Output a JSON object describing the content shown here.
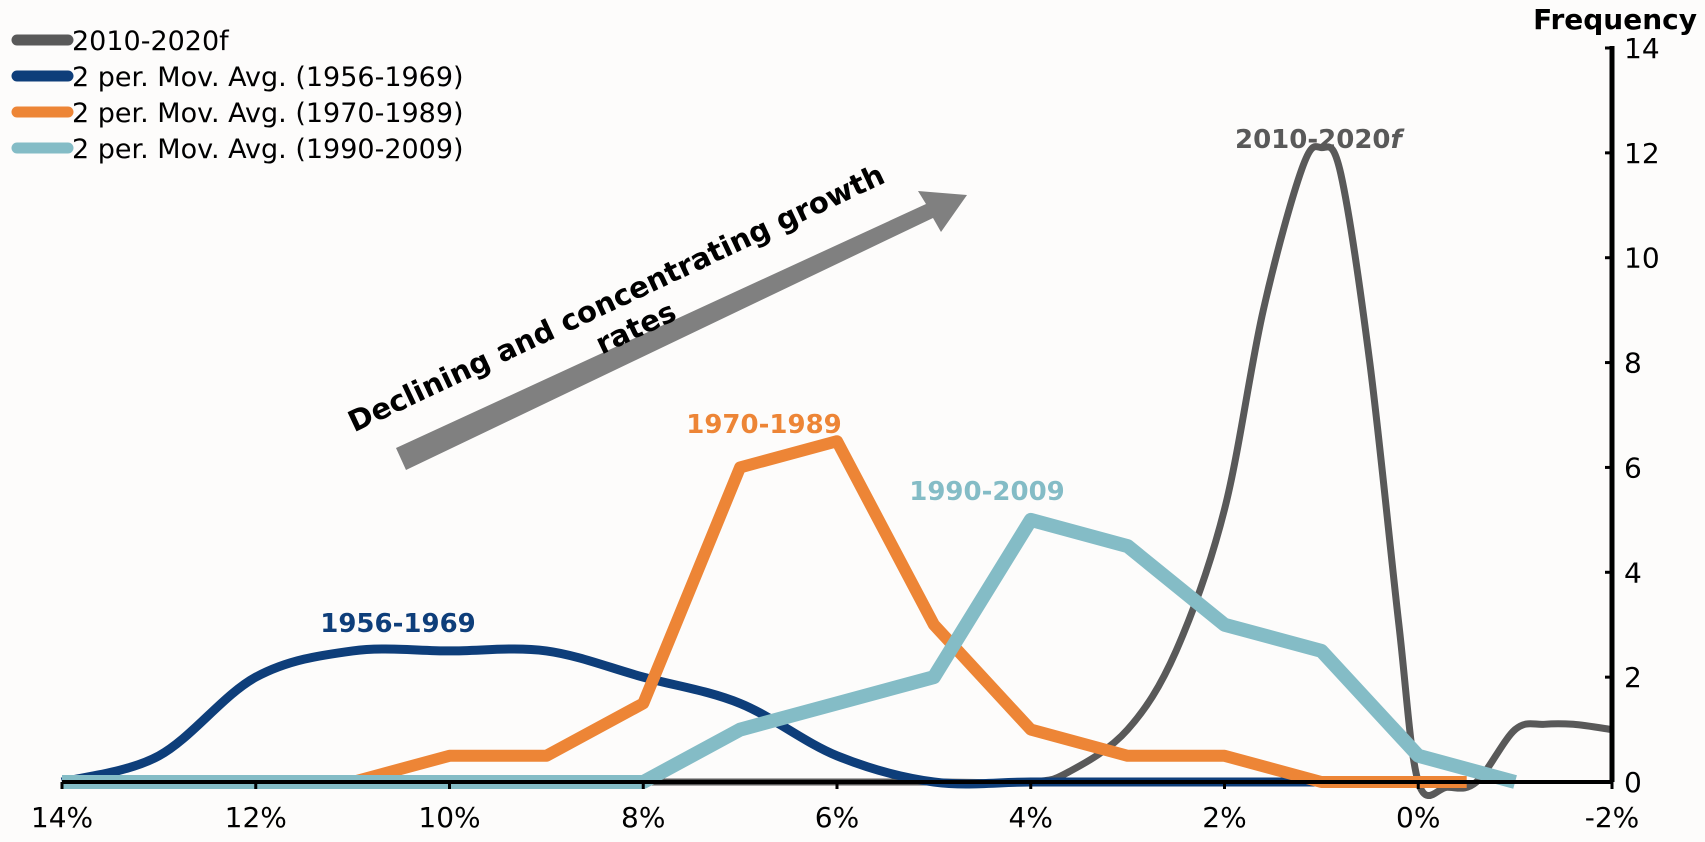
{
  "chart_data": {
    "type": "line",
    "x_axis": {
      "tick_labels": [
        "14%",
        "12%",
        "10%",
        "8%",
        "6%",
        "4%",
        "2%",
        "0%",
        "-2%"
      ],
      "tick_values": [
        14,
        12,
        10,
        8,
        6,
        4,
        2,
        0,
        -2
      ],
      "range": [
        14,
        -2
      ],
      "reversed": true
    },
    "y_axis": {
      "title": "Frequency",
      "tick_labels": [
        "0",
        "2",
        "4",
        "6",
        "8",
        "10",
        "12",
        "14"
      ],
      "tick_values": [
        0,
        2,
        4,
        6,
        8,
        10,
        12,
        14
      ],
      "range": [
        0,
        14
      ],
      "position": "right"
    },
    "grid": false,
    "legend_position": "top-left",
    "series": [
      {
        "name": "2010-2020f",
        "label": "2010-2020",
        "label_suffix": "f",
        "color": "#595959",
        "smooth": true,
        "x": [
          14,
          13,
          12,
          11,
          10,
          9,
          8,
          7,
          6,
          5,
          4,
          3.6,
          3,
          2.5,
          2,
          1.6,
          1.2,
          1,
          0.8,
          0.5,
          0.2,
          0,
          -0.3,
          -0.6,
          -1,
          -1.3,
          -1.6,
          -2
        ],
        "y": [
          0,
          0,
          0,
          0,
          0,
          0,
          0,
          0,
          0,
          0,
          0,
          0.2,
          1,
          2.5,
          5.2,
          9,
          11.7,
          12.1,
          11.6,
          8,
          3,
          0,
          -0.1,
          0,
          1,
          1.1,
          1.1,
          1
        ]
      },
      {
        "name": "2 per. Mov. Avg. (1956-1969)",
        "label": "1956-1969",
        "color": "#0e3e7a",
        "smooth": true,
        "x": [
          14,
          13,
          12,
          11,
          10,
          9,
          8,
          7,
          6,
          5,
          4,
          3,
          2,
          1,
          0
        ],
        "y": [
          0,
          0.5,
          2,
          2.5,
          2.5,
          2.5,
          2,
          1.5,
          0.5,
          0,
          0,
          0,
          0,
          0,
          0
        ]
      },
      {
        "name": "2 per. Mov. Avg. (1970-1989)",
        "label": "1970-1989",
        "color": "#ed8536",
        "smooth": false,
        "x": [
          11,
          10,
          9,
          8,
          7,
          6,
          5,
          4,
          3,
          2,
          1,
          0,
          -0.5
        ],
        "y": [
          0,
          0.5,
          0.5,
          1.5,
          6,
          6.5,
          3,
          1,
          0.5,
          0.5,
          0,
          0,
          0
        ]
      },
      {
        "name": "2 per. Mov. Avg. (1990-2009)",
        "label": "1990-2009",
        "color": "#84bcc6",
        "smooth": false,
        "x": [
          14,
          13,
          12,
          11,
          10,
          9,
          8,
          7,
          6,
          5,
          4,
          3,
          2,
          1,
          0,
          -1
        ],
        "y": [
          0,
          0,
          0,
          0,
          0,
          0,
          0,
          1,
          1.5,
          2,
          5,
          4.5,
          3,
          2.5,
          0.5,
          0
        ]
      }
    ],
    "annotations": {
      "arrow_text_line1": "Declining and concentrating growth",
      "arrow_text_line2": "rates",
      "arrow_color": "#808080"
    }
  }
}
